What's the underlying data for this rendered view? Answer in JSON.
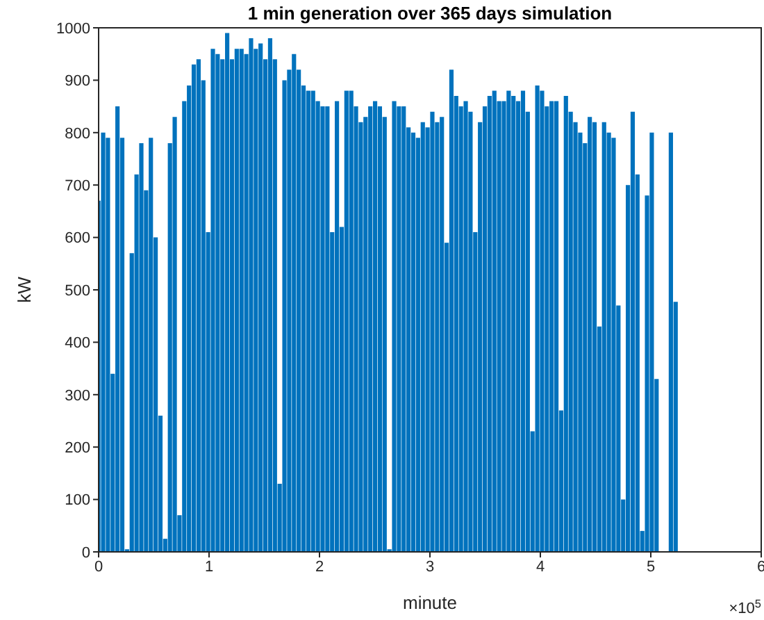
{
  "chart_data": {
    "type": "bar",
    "title": "1 min generation over 365 days simulation",
    "xlabel": "minute",
    "ylabel": "kW",
    "annotations": [
      "×10$^{5}$"
    ],
    "x": [
      0,
      0.0432,
      0.0864,
      0.1296,
      0.1728,
      0.216,
      0.2592,
      0.3024,
      0.3456,
      0.3888,
      0.432,
      0.4752,
      0.5184,
      0.5616,
      0.6048,
      0.648,
      0.6912,
      0.7344,
      0.7776,
      0.8208,
      0.864,
      0.9072,
      0.9504,
      0.9936,
      1.0368,
      1.08,
      1.1232,
      1.1664,
      1.2096,
      1.2528,
      1.296,
      1.3392,
      1.3824,
      1.4256,
      1.4688,
      1.512,
      1.5552,
      1.5984,
      1.6416,
      1.6848,
      1.728,
      1.7712,
      1.8144,
      1.8576,
      1.9008,
      1.944,
      1.9872,
      2.0304,
      2.0736,
      2.1168,
      2.16,
      2.2032,
      2.2464,
      2.2896,
      2.3328,
      2.376,
      2.4192,
      2.4624,
      2.5056,
      2.5488,
      2.592,
      2.6352,
      2.6784,
      2.7216,
      2.7648,
      2.808,
      2.8512,
      2.8944,
      2.9376,
      2.9808,
      3.024,
      3.0672,
      3.1104,
      3.1536,
      3.1968,
      3.24,
      3.2832,
      3.3264,
      3.3696,
      3.4128,
      3.456,
      3.4992,
      3.5424,
      3.5856,
      3.6288,
      3.672,
      3.7152,
      3.7584,
      3.8016,
      3.8448,
      3.888,
      3.9312,
      3.9744,
      4.0176,
      4.0608,
      4.104,
      4.1472,
      4.1904,
      4.2336,
      4.2768,
      4.32,
      4.3632,
      4.4064,
      4.4496,
      4.4928,
      4.536,
      4.5792,
      4.6224,
      4.6656,
      4.7088,
      4.752,
      4.7952,
      4.8384,
      4.8816,
      4.9248,
      4.968,
      5.0112,
      5.0544,
      5.0976,
      5.1408,
      5.184,
      5.2272
    ],
    "values": [
      670,
      800,
      790,
      340,
      850,
      790,
      5,
      570,
      720,
      780,
      690,
      790,
      600,
      260,
      25,
      780,
      830,
      70,
      860,
      890,
      930,
      940,
      900,
      610,
      960,
      950,
      940,
      990,
      940,
      960,
      960,
      950,
      980,
      960,
      970,
      940,
      980,
      940,
      130,
      900,
      920,
      950,
      920,
      890,
      880,
      880,
      860,
      850,
      850,
      610,
      860,
      620,
      880,
      880,
      850,
      820,
      830,
      850,
      860,
      850,
      830,
      5,
      860,
      850,
      850,
      810,
      800,
      790,
      820,
      810,
      840,
      820,
      830,
      590,
      920,
      870,
      850,
      860,
      840,
      610,
      820,
      850,
      870,
      880,
      860,
      860,
      880,
      870,
      860,
      880,
      840,
      230,
      890,
      880,
      850,
      860,
      860,
      270,
      870,
      840,
      820,
      800,
      780,
      830,
      820,
      430,
      820,
      800,
      790,
      470,
      100,
      700,
      840,
      720,
      40,
      680,
      800,
      330,
      0,
      0,
      800,
      477
    ],
    "color": "#0072bd",
    "xlim": [
      0,
      6
    ],
    "xticks": [
      0,
      1,
      2,
      3,
      4,
      5,
      6
    ],
    "ylim": [
      0,
      1000
    ],
    "yticks": [
      0,
      100,
      200,
      300,
      400,
      500,
      600,
      700,
      800,
      900,
      1000
    ],
    "grid": false,
    "legend": false
  }
}
